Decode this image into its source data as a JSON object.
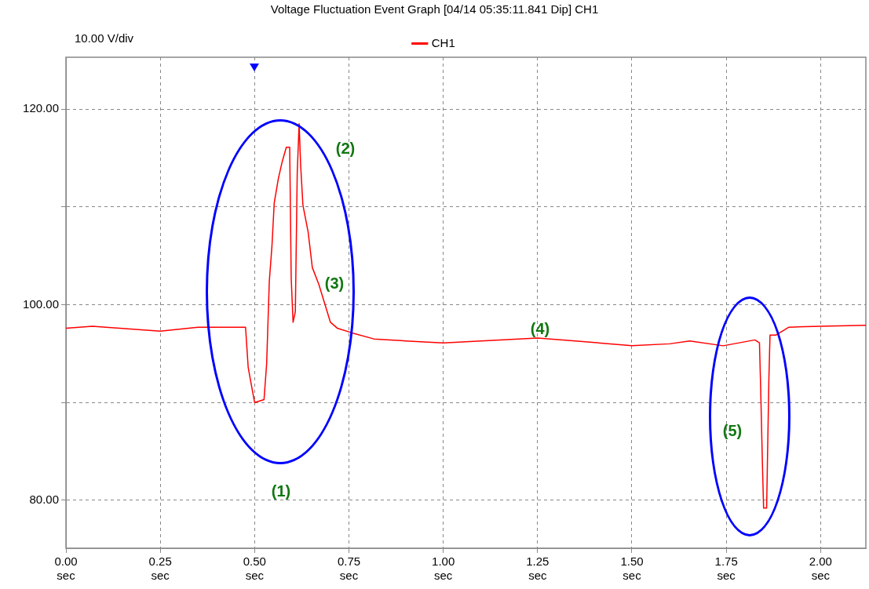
{
  "chart_data": {
    "type": "line",
    "title": "Voltage Fluctuation Event Graph [04/14 05:35:11.841 Dip] CH1",
    "x": [
      0,
      0.07,
      0.25,
      0.35,
      0.476,
      0.483,
      0.49,
      0.5,
      0.525,
      0.532,
      0.539,
      0.546,
      0.552,
      0.563,
      0.573,
      0.584,
      0.593,
      0.597,
      0.602,
      0.608,
      0.613,
      0.618,
      0.622,
      0.628,
      0.642,
      0.653,
      0.67,
      0.701,
      0.719,
      0.76,
      0.816,
      0.9,
      1.0,
      1.1,
      1.25,
      1.35,
      1.5,
      1.6,
      1.653,
      1.742,
      1.826,
      1.838,
      1.841,
      1.846,
      1.849,
      1.857,
      1.859,
      1.863,
      1.866,
      1.882,
      1.916,
      2.0,
      2.12
    ],
    "series": [
      {
        "name": "CH1",
        "color": "#ff0000",
        "values": [
          97.6,
          97.8,
          97.3,
          97.7,
          97.7,
          93.6,
          92.1,
          90.0,
          90.3,
          94.0,
          102.4,
          106.0,
          110.4,
          112.9,
          114.6,
          116.1,
          116.1,
          102.7,
          98.2,
          99.3,
          113.5,
          118.5,
          114.3,
          110.2,
          107.4,
          103.8,
          102.1,
          98.2,
          97.6,
          97.1,
          96.5,
          96.3,
          96.1,
          96.3,
          96.6,
          96.3,
          95.8,
          96.0,
          96.3,
          95.8,
          96.4,
          96.1,
          91.8,
          83.5,
          79.2,
          79.2,
          83.6,
          92.4,
          96.9,
          96.9,
          97.7,
          97.8,
          97.9
        ]
      }
    ],
    "xlim": [
      0,
      2.12
    ],
    "xticks": [
      {
        "value": 0,
        "label": "0.00\nsec"
      },
      {
        "value": 0.25,
        "label": "0.25\nsec"
      },
      {
        "value": 0.5,
        "label": "0.50\nsec"
      },
      {
        "value": 0.75,
        "label": "0.75\nsec"
      },
      {
        "value": 1,
        "label": "1.00\nsec"
      },
      {
        "value": 1.25,
        "label": "1.25\nsec"
      },
      {
        "value": 1.5,
        "label": "1.50\nsec"
      },
      {
        "value": 1.75,
        "label": "1.75\nsec"
      },
      {
        "value": 2,
        "label": "2.00\nsec"
      }
    ],
    "ylim": [
      75.1,
      125.3
    ],
    "yticks": [
      {
        "value": 80,
        "label": "80.00"
      },
      {
        "value": 90,
        "label": null
      },
      {
        "value": 100,
        "label": "100.00"
      },
      {
        "value": 110,
        "label": null
      },
      {
        "value": 120,
        "label": "120.00"
      }
    ],
    "grid": true,
    "legend": "top",
    "marker": "none",
    "line_style": "solid",
    "annotations": [
      "10.00 V/div",
      "(1)",
      "(2)",
      "(3)",
      "(4)",
      "(5)"
    ]
  }
}
